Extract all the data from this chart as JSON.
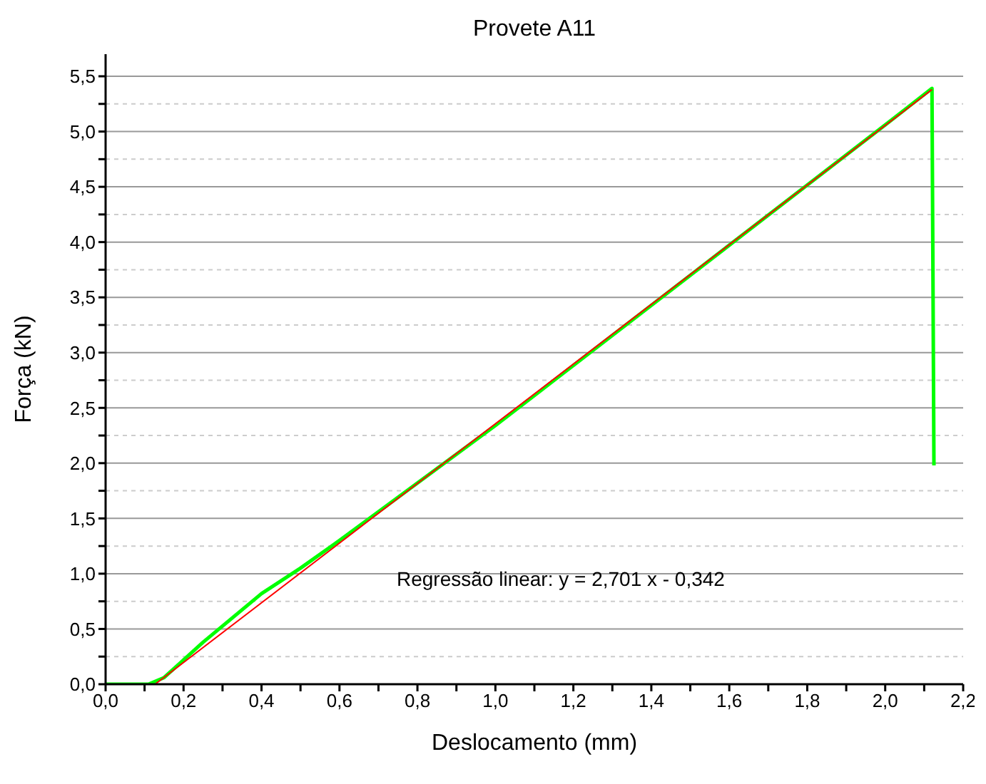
{
  "chart_data": {
    "type": "line",
    "title": "Provete A11",
    "xlabel": "Deslocamento (mm)",
    "ylabel": "Força (kN)",
    "annotations": [
      "Regressão linear: y = 2,701 x - 0,342"
    ],
    "xlim": [
      0,
      2.2
    ],
    "ylim": [
      0,
      5.7
    ],
    "xticks": [
      {
        "value": 0,
        "label": "0,0"
      },
      {
        "value": 0.1,
        "label": null
      },
      {
        "value": 0.2,
        "label": "0,2"
      },
      {
        "value": 0.3,
        "label": null
      },
      {
        "value": 0.4,
        "label": "0,4"
      },
      {
        "value": 0.5,
        "label": null
      },
      {
        "value": 0.6,
        "label": "0,6"
      },
      {
        "value": 0.7,
        "label": null
      },
      {
        "value": 0.8,
        "label": "0,8"
      },
      {
        "value": 0.9,
        "label": null
      },
      {
        "value": 1,
        "label": "1,0"
      },
      {
        "value": 1.1,
        "label": null
      },
      {
        "value": 1.2,
        "label": "1,2"
      },
      {
        "value": 1.3,
        "label": null
      },
      {
        "value": 1.4,
        "label": "1,4"
      },
      {
        "value": 1.5,
        "label": null
      },
      {
        "value": 1.6,
        "label": "1,6"
      },
      {
        "value": 1.7,
        "label": null
      },
      {
        "value": 1.8,
        "label": "1,8"
      },
      {
        "value": 1.9,
        "label": null
      },
      {
        "value": 2,
        "label": "2,0"
      },
      {
        "value": 2.1,
        "label": null
      },
      {
        "value": 2.2,
        "label": "2,2"
      }
    ],
    "yticks": [
      {
        "value": 0,
        "label": "0,0"
      },
      {
        "value": 0.25,
        "label": null
      },
      {
        "value": 0.5,
        "label": "0,5"
      },
      {
        "value": 0.75,
        "label": null
      },
      {
        "value": 1,
        "label": "1,0"
      },
      {
        "value": 1.25,
        "label": null
      },
      {
        "value": 1.5,
        "label": "1,5"
      },
      {
        "value": 1.75,
        "label": null
      },
      {
        "value": 2,
        "label": "2,0"
      },
      {
        "value": 2.25,
        "label": null
      },
      {
        "value": 2.5,
        "label": "2,5"
      },
      {
        "value": 2.75,
        "label": null
      },
      {
        "value": 3,
        "label": "3,0"
      },
      {
        "value": 3.25,
        "label": null
      },
      {
        "value": 3.5,
        "label": "3,5"
      },
      {
        "value": 3.75,
        "label": null
      },
      {
        "value": 4,
        "label": "4,0"
      },
      {
        "value": 4.25,
        "label": null
      },
      {
        "value": 4.5,
        "label": "4,5"
      },
      {
        "value": 4.75,
        "label": null
      },
      {
        "value": 5,
        "label": "5,0"
      },
      {
        "value": 5.25,
        "label": null
      },
      {
        "value": 5.5,
        "label": "5,5"
      }
    ],
    "grid": "y",
    "marker": "none",
    "line_style": "solid",
    "series": [
      {
        "color": "#00ff00",
        "x": [
          0,
          0.11,
          0.15,
          0.25,
          0.4,
          0.5,
          0.6,
          1.0,
          1.5,
          2.0,
          2.12,
          2.125
        ],
        "values": [
          0,
          0,
          0.06,
          0.38,
          0.82,
          1.05,
          1.3,
          2.34,
          3.7,
          5.06,
          5.39,
          1.98
        ]
      },
      {
        "color": "#ff0000",
        "x": [
          0.127,
          2.12
        ],
        "values": [
          0,
          5.38
        ]
      }
    ]
  }
}
